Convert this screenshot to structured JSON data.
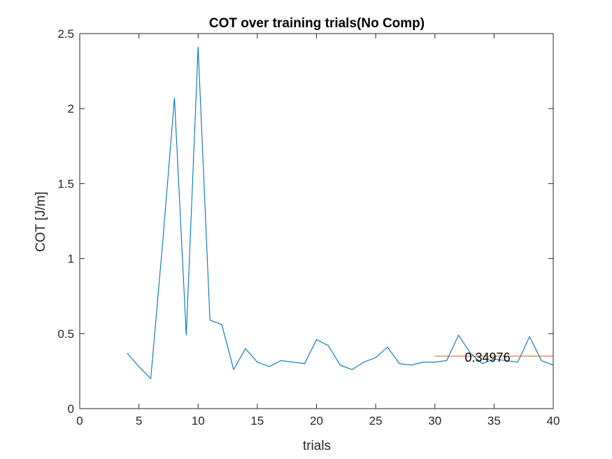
{
  "chart_data": {
    "type": "line",
    "title": "COT over training trials(No Comp)",
    "xlabel": "trials",
    "ylabel": "COT [J/m]",
    "xlim": [
      0,
      40
    ],
    "ylim": [
      0,
      2.5
    ],
    "xticks": [
      0,
      5,
      10,
      15,
      20,
      25,
      30,
      35,
      40
    ],
    "yticks": [
      0,
      0.5,
      1,
      1.5,
      2,
      2.5
    ],
    "xtick_labels": [
      "0",
      "5",
      "10",
      "15",
      "20",
      "25",
      "30",
      "35",
      "40"
    ],
    "ytick_labels": [
      "0",
      "0.5",
      "1",
      "1.5",
      "2",
      "2.5"
    ],
    "grid": false,
    "series": [
      {
        "color": "#0072BD",
        "x": [
          4,
          5,
          6,
          7,
          8,
          9,
          10,
          11,
          12,
          13,
          14,
          15,
          16,
          17,
          18,
          19,
          20,
          21,
          22,
          23,
          24,
          25,
          26,
          27,
          28,
          29,
          30,
          31,
          32,
          33,
          34,
          35,
          36,
          37,
          38,
          39,
          40
        ],
        "y": [
          0.37,
          0.28,
          0.2,
          1.1,
          2.07,
          0.49,
          2.41,
          0.59,
          0.56,
          0.26,
          0.4,
          0.31,
          0.28,
          0.32,
          0.31,
          0.3,
          0.46,
          0.42,
          0.29,
          0.26,
          0.31,
          0.34,
          0.41,
          0.3,
          0.29,
          0.31,
          0.31,
          0.32,
          0.49,
          0.37,
          0.3,
          0.33,
          0.32,
          0.31,
          0.48,
          0.32,
          0.29
        ]
      },
      {
        "color": "#D95319",
        "x": [
          30,
          40
        ],
        "y": [
          0.34976,
          0.34976
        ]
      }
    ],
    "annotations": [
      {
        "text": "0.34976",
        "x": 33,
        "y": 0.34976
      }
    ]
  }
}
